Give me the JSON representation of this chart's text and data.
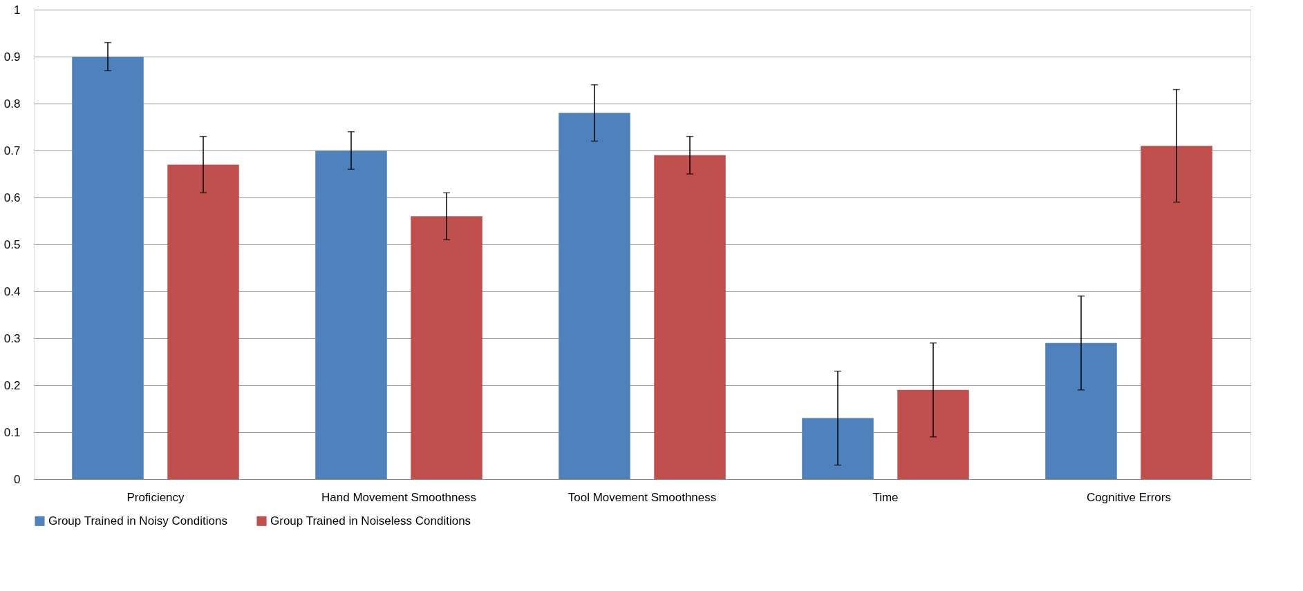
{
  "chart_data": {
    "type": "bar",
    "categories": [
      "Proficiency",
      "Hand Movement Smoothness",
      "Tool Movement Smoothness",
      "Time",
      "Cognitive Errors"
    ],
    "series": [
      {
        "name": "Group Trained in Noisy Conditions",
        "color": "#4f81bd",
        "values": [
          0.9,
          0.7,
          0.78,
          0.13,
          0.29
        ],
        "errors": [
          0.03,
          0.04,
          0.06,
          0.1,
          0.1
        ]
      },
      {
        "name": "Group Trained in Noiseless Conditions",
        "color": "#c0504d",
        "values": [
          0.67,
          0.56,
          0.69,
          0.19,
          0.71
        ],
        "errors": [
          0.06,
          0.05,
          0.04,
          0.1,
          0.12
        ]
      }
    ],
    "ylim": [
      0,
      1
    ],
    "yticks": [
      0,
      0.1,
      0.2,
      0.3,
      0.4,
      0.5,
      0.6,
      0.7,
      0.8,
      0.9,
      1
    ],
    "grid": "y",
    "legend": "bottom"
  }
}
